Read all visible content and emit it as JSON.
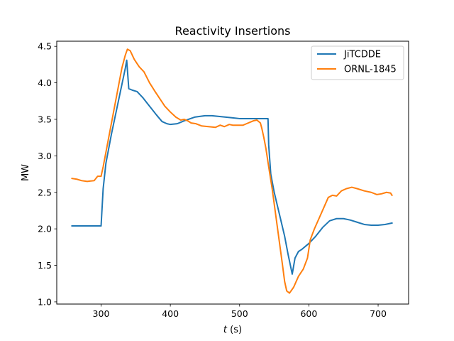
{
  "chart_data": {
    "type": "line",
    "title": "Reactivity Insertions",
    "xlabel_var": "t",
    "xlabel_unit": " (s)",
    "ylabel": "MW",
    "xlim": [
      236,
      744
    ],
    "ylim": [
      0.97,
      4.57
    ],
    "xticks": [
      300,
      400,
      500,
      600,
      700
    ],
    "yticks": [
      1.0,
      1.5,
      2.0,
      2.5,
      3.0,
      3.5,
      4.0,
      4.5
    ],
    "ytick_labels": [
      "1.0",
      "1.5",
      "2.0",
      "2.5",
      "3.0",
      "3.5",
      "4.0",
      "4.5"
    ],
    "grid": false,
    "legend_position": "top-right",
    "series": [
      {
        "name": "JiTCDDE",
        "color": "#1f77b4",
        "x": [
          258,
          270,
          285,
          300,
          303,
          307,
          315,
          325,
          335,
          337,
          340,
          345,
          352,
          360,
          370,
          380,
          388,
          395,
          400,
          410,
          420,
          435,
          450,
          460,
          470,
          480,
          490,
          500,
          510,
          520,
          530,
          541,
          542,
          545,
          550,
          555,
          560,
          565,
          570,
          576,
          580,
          585,
          590,
          600,
          610,
          620,
          630,
          640,
          650,
          660,
          670,
          680,
          690,
          700,
          710,
          720
        ],
        "y": [
          2.04,
          2.04,
          2.04,
          2.04,
          2.55,
          2.9,
          3.3,
          3.75,
          4.2,
          4.31,
          3.92,
          3.9,
          3.88,
          3.8,
          3.68,
          3.56,
          3.47,
          3.44,
          3.43,
          3.44,
          3.48,
          3.53,
          3.55,
          3.55,
          3.54,
          3.53,
          3.52,
          3.51,
          3.51,
          3.51,
          3.51,
          3.51,
          3.15,
          2.75,
          2.5,
          2.3,
          2.1,
          1.9,
          1.65,
          1.38,
          1.6,
          1.69,
          1.72,
          1.8,
          1.9,
          2.02,
          2.11,
          2.14,
          2.14,
          2.12,
          2.09,
          2.06,
          2.05,
          2.05,
          2.06,
          2.08
        ]
      },
      {
        "name": "ORNL-1845",
        "color": "#ff7f0e",
        "x": [
          258,
          265,
          272,
          280,
          290,
          295,
          300,
          303,
          310,
          318,
          325,
          330,
          335,
          338,
          342,
          348,
          355,
          362,
          370,
          378,
          385,
          392,
          400,
          408,
          415,
          420,
          425,
          430,
          437,
          445,
          455,
          465,
          472,
          478,
          485,
          490,
          495,
          500,
          505,
          510,
          515,
          520,
          525,
          530,
          532,
          535,
          538,
          542,
          547,
          552,
          557,
          562,
          565,
          568,
          572,
          578,
          585,
          592,
          598,
          602,
          608,
          615,
          622,
          628,
          634,
          640,
          647,
          654,
          662,
          670,
          680,
          690,
          698,
          705,
          712,
          718,
          720
        ],
        "y": [
          2.69,
          2.68,
          2.66,
          2.65,
          2.66,
          2.72,
          2.72,
          2.85,
          3.2,
          3.6,
          3.95,
          4.2,
          4.38,
          4.46,
          4.44,
          4.32,
          4.22,
          4.15,
          4.0,
          3.88,
          3.78,
          3.68,
          3.6,
          3.53,
          3.49,
          3.5,
          3.48,
          3.45,
          3.44,
          3.41,
          3.4,
          3.39,
          3.42,
          3.4,
          3.43,
          3.42,
          3.42,
          3.42,
          3.42,
          3.44,
          3.46,
          3.48,
          3.49,
          3.45,
          3.38,
          3.25,
          3.1,
          2.85,
          2.55,
          2.2,
          1.85,
          1.5,
          1.28,
          1.15,
          1.12,
          1.2,
          1.35,
          1.45,
          1.6,
          1.85,
          2.0,
          2.15,
          2.3,
          2.43,
          2.46,
          2.45,
          2.52,
          2.55,
          2.57,
          2.55,
          2.52,
          2.5,
          2.47,
          2.48,
          2.5,
          2.49,
          2.46
        ]
      }
    ]
  }
}
